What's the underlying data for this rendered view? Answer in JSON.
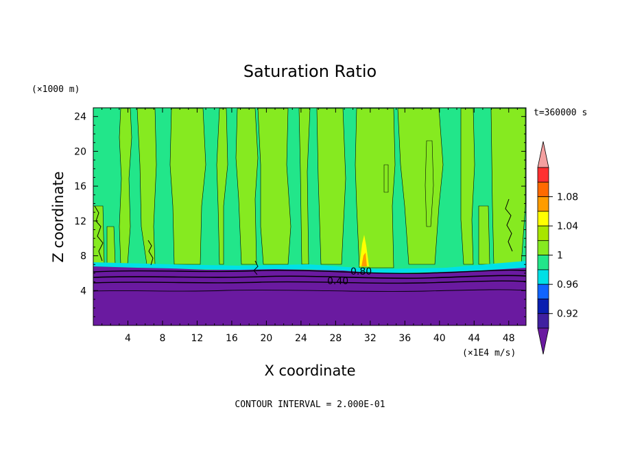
{
  "chart_data": {
    "type": "heatmap",
    "title": "Saturation Ratio",
    "xlabel": "X coordinate",
    "ylabel": "Z coordinate",
    "x_unit": "(×1E4 m/s)",
    "y_unit": "(×1000 m)",
    "time_label": "t=360000 s",
    "footer": "CONTOUR INTERVAL = 2.000E-01",
    "xlim": [
      0,
      50
    ],
    "ylim": [
      0,
      25
    ],
    "x_ticks": [
      "4",
      "8",
      "12",
      "16",
      "20",
      "24",
      "28",
      "32",
      "36",
      "40",
      "44",
      "48"
    ],
    "y_ticks": [
      "4",
      "8",
      "12",
      "16",
      "20",
      "24"
    ],
    "contour_labels": [
      "0.80",
      "0.40"
    ],
    "colorbar": {
      "levels": [
        {
          "label": "",
          "color": "#f4a0a0"
        },
        {
          "label": "",
          "color": "#ff3030"
        },
        {
          "label": "1.08",
          "color": "#ff6a00"
        },
        {
          "label": "",
          "color": "#ff9c00"
        },
        {
          "label": "1.04",
          "color": "#ffff00"
        },
        {
          "label": "",
          "color": "#a8e600"
        },
        {
          "label": "1",
          "color": "#86ea20"
        },
        {
          "label": "",
          "color": "#22e68a"
        },
        {
          "label": "0.96",
          "color": "#00e0e6"
        },
        {
          "label": "",
          "color": "#1064ff"
        },
        {
          "label": "0.92",
          "color": "#0a1eb0"
        },
        {
          "label": "",
          "color": "#4020a0"
        },
        {
          "label": "",
          "color": "#6a1aa0"
        }
      ]
    }
  }
}
